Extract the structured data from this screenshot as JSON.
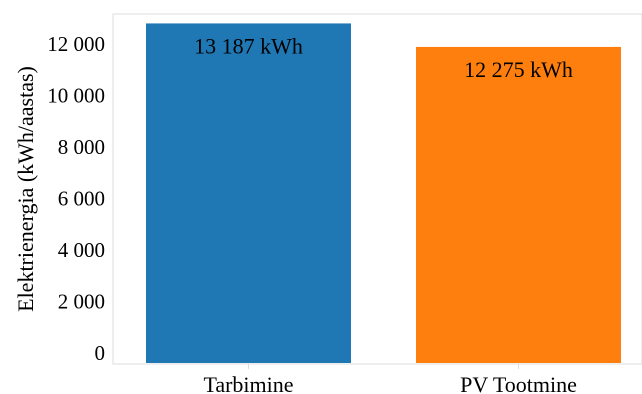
{
  "chart_data": {
    "type": "bar",
    "categories": [
      "Tarbimine",
      "PV Tootmine"
    ],
    "values": [
      13187,
      12275
    ],
    "data_labels": [
      "13 187 kWh",
      "12 275 kWh"
    ],
    "colors": [
      "#1f77b4",
      "#ff7f0e"
    ],
    "title": "",
    "xlabel": "",
    "ylabel": "Elektrienergia (kWh/aastas)",
    "ylim": [
      0,
      13500
    ],
    "yticks": [
      0,
      2000,
      4000,
      6000,
      8000,
      10000,
      12000
    ],
    "ytick_labels": [
      "0",
      "2 000",
      "4 000",
      "6 000",
      "8 000",
      "10 000",
      "12 000"
    ],
    "grid": false,
    "legend": "none"
  }
}
